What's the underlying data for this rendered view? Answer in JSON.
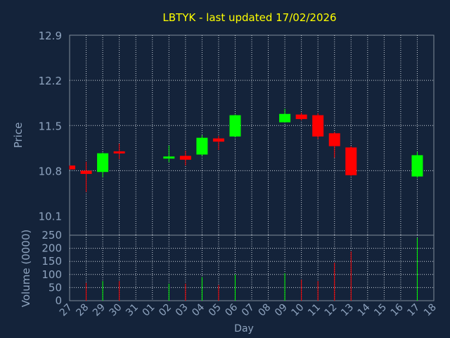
{
  "chart_data": [
    {
      "type": "candlestick",
      "title": "LBTYK - last updated 17/02/2026",
      "ylabel": "Price",
      "ylim": [
        9.8,
        12.9
      ],
      "yticks": [
        10.1,
        10.8,
        11.5,
        12.2,
        12.9
      ],
      "ytick_labels": [
        "10.1",
        "10.8",
        "11.5",
        "12.2",
        "12.9"
      ],
      "grid": true,
      "x": [
        "27",
        "28",
        "29",
        "30",
        "31",
        "01",
        "02",
        "03",
        "04",
        "05",
        "06",
        "07",
        "08",
        "09",
        "10",
        "11",
        "12",
        "13",
        "14",
        "15",
        "16",
        "17",
        "18"
      ],
      "candles": [
        {
          "x": "27",
          "open": 10.88,
          "close": 10.82,
          "high": 10.88,
          "low": 10.82
        },
        {
          "x": "28",
          "open": 10.8,
          "close": 10.75,
          "high": 10.94,
          "low": 10.47
        },
        {
          "x": "29",
          "open": 10.78,
          "close": 11.07,
          "high": 11.08,
          "low": 10.7
        },
        {
          "x": "30",
          "open": 11.1,
          "close": 11.08,
          "high": 11.22,
          "low": 10.98
        },
        {
          "x": "02",
          "open": 11.01,
          "close": 11.02,
          "high": 11.19,
          "low": 10.93
        },
        {
          "x": "03",
          "open": 11.03,
          "close": 10.97,
          "high": 11.11,
          "low": 10.88
        },
        {
          "x": "04",
          "open": 11.05,
          "close": 11.31,
          "high": 11.35,
          "low": 11.03
        },
        {
          "x": "05",
          "open": 11.3,
          "close": 11.25,
          "high": 11.34,
          "low": 11.12
        },
        {
          "x": "06",
          "open": 11.33,
          "close": 11.66,
          "high": 11.67,
          "low": 11.32
        },
        {
          "x": "09",
          "open": 11.55,
          "close": 11.68,
          "high": 11.76,
          "low": 11.55
        },
        {
          "x": "10",
          "open": 11.67,
          "close": 11.6,
          "high": 11.7,
          "low": 11.58
        },
        {
          "x": "11",
          "open": 11.66,
          "close": 11.33,
          "high": 11.69,
          "low": 11.29
        },
        {
          "x": "12",
          "open": 11.38,
          "close": 11.18,
          "high": 11.4,
          "low": 11.0
        },
        {
          "x": "13",
          "open": 11.16,
          "close": 10.73,
          "high": 11.18,
          "low": 10.72
        },
        {
          "x": "17",
          "open": 10.71,
          "close": 11.04,
          "high": 11.09,
          "low": 10.69
        }
      ],
      "up_color": "#00ff00",
      "down_color": "#ff0000"
    },
    {
      "type": "bar",
      "ylabel": "Volume (0000)",
      "xlabel": "Day",
      "ylim": [
        0,
        250
      ],
      "yticks": [
        0,
        50,
        100,
        150,
        200,
        250
      ],
      "ytick_labels": [
        "0",
        "50",
        "100",
        "150",
        "200",
        "250"
      ],
      "categories": [
        "27",
        "28",
        "29",
        "30",
        "31",
        "01",
        "02",
        "03",
        "04",
        "05",
        "06",
        "07",
        "08",
        "09",
        "10",
        "11",
        "12",
        "13",
        "14",
        "15",
        "16",
        "17",
        "18"
      ],
      "bars": [
        {
          "x": "28",
          "value": 68,
          "color": "#ff0000"
        },
        {
          "x": "29",
          "value": 75,
          "color": "#00ff00"
        },
        {
          "x": "30",
          "value": 75,
          "color": "#ff0000"
        },
        {
          "x": "02",
          "value": 65,
          "color": "#00ff00"
        },
        {
          "x": "03",
          "value": 65,
          "color": "#ff0000"
        },
        {
          "x": "04",
          "value": 90,
          "color": "#00ff00"
        },
        {
          "x": "05",
          "value": 60,
          "color": "#ff0000"
        },
        {
          "x": "06",
          "value": 100,
          "color": "#00ff00"
        },
        {
          "x": "09",
          "value": 105,
          "color": "#00ff00"
        },
        {
          "x": "10",
          "value": 80,
          "color": "#ff0000"
        },
        {
          "x": "11",
          "value": 75,
          "color": "#ff0000"
        },
        {
          "x": "12",
          "value": 145,
          "color": "#ff0000"
        },
        {
          "x": "13",
          "value": 188,
          "color": "#ff0000"
        },
        {
          "x": "17",
          "value": 240,
          "color": "#00ff00"
        }
      ]
    }
  ],
  "colors": {
    "background": "#14233a",
    "frame": "#7f8c9a",
    "grid": "#c8d0d8",
    "axis_text": "#8fa4bf",
    "title": "#ffff00"
  }
}
